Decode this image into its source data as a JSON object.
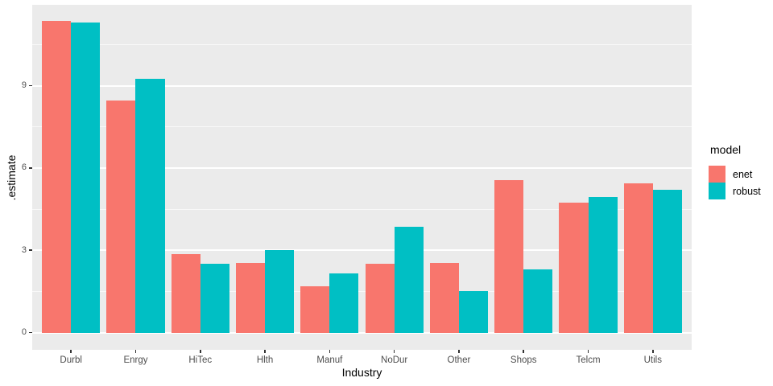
{
  "chart_data": {
    "type": "bar",
    "variant": "grouped-dodged",
    "title": "",
    "xlabel": "Industry",
    "ylabel": ".estimate",
    "categories": [
      "Durbl",
      "Enrgy",
      "HiTec",
      "Hlth",
      "Manuf",
      "NoDur",
      "Other",
      "Shops",
      "Telcm",
      "Utils"
    ],
    "series": [
      {
        "name": "enet",
        "color": "#F8766D",
        "values": [
          11.35,
          8.45,
          2.85,
          2.55,
          1.7,
          2.5,
          2.55,
          5.55,
          4.75,
          5.45
        ]
      },
      {
        "name": "robust",
        "color": "#00BFC4",
        "values": [
          11.3,
          9.25,
          2.5,
          3.0,
          2.15,
          3.85,
          1.5,
          2.3,
          4.95,
          5.2
        ]
      }
    ],
    "y_ticks": [
      0,
      3,
      6,
      9
    ],
    "y_minor_ticks": [
      1.5,
      4.5,
      7.5,
      10.5
    ],
    "ylim": [
      -0.63,
      11.95
    ],
    "grid": "white major and minor horizontal gridlines on grey panel",
    "legend_position": "right"
  },
  "legend": {
    "title": "model",
    "entries": [
      {
        "label": "enet",
        "color": "#F8766D"
      },
      {
        "label": "robust",
        "color": "#00BFC4"
      }
    ]
  },
  "colors": {
    "panel_background": "#EBEBEB",
    "figure_background": "#FFFFFF",
    "grid_major": "#FFFFFF",
    "grid_minor": "#FFFFFF",
    "tick_label_text": "#4D4D4D",
    "axis_title_text": "#000000",
    "series_enet": "#F8766D",
    "series_robust": "#00BFC4"
  }
}
